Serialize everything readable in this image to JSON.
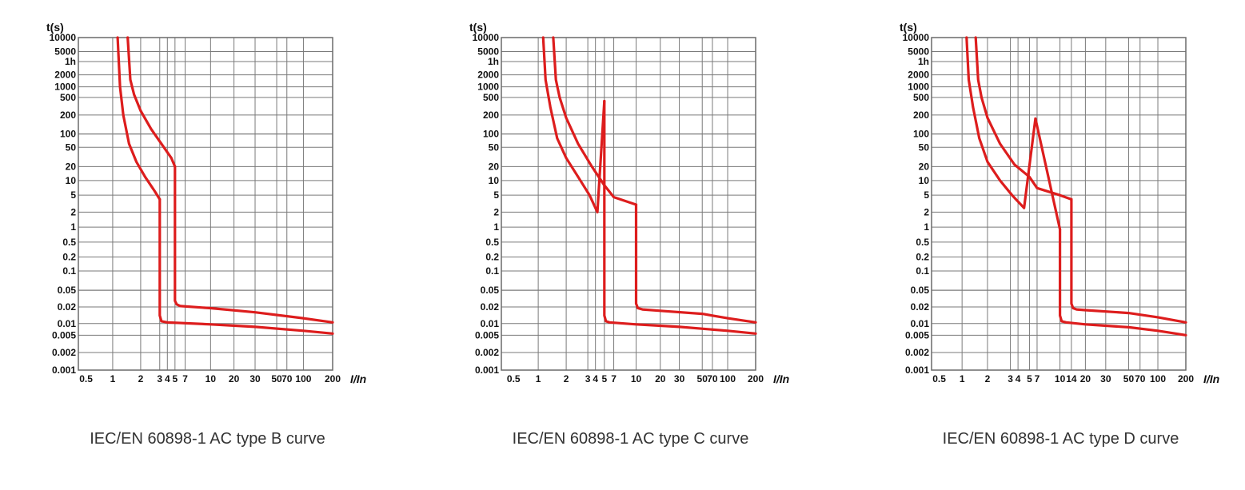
{
  "colors": {
    "curve": "#dd1d1d",
    "grid": "#7a7a7a"
  },
  "chart_data": [
    {
      "type": "line",
      "title": "IEC/EN 60898-1 AC type B curve",
      "xlabel": "I/In",
      "ylabel": "t(s)",
      "xscale": "log",
      "yscale": "log",
      "grid": true,
      "xlim": [
        0.5,
        200
      ],
      "ylim": [
        0.001,
        10000
      ],
      "x_ticks": [
        "0.5",
        "1",
        "2",
        "3",
        "4",
        "5",
        "7",
        "10",
        "20",
        "30",
        "50",
        "70",
        "100",
        "200"
      ],
      "y_ticks": [
        "10000",
        "5000",
        "1h",
        "2000",
        "1000",
        "500",
        "200",
        "100",
        "50",
        "20",
        "10",
        "5",
        "2",
        "1",
        "0.5",
        "0.2",
        "0.1",
        "0.05",
        "0.02",
        "0.01",
        "0.005",
        "0.002",
        "0.001"
      ],
      "series": [
        {
          "x": [
            1.13,
            1.2,
            1.3,
            1.5,
            1.8,
            2.2,
            2.7,
            3
          ],
          "y": [
            10000,
            1000,
            200,
            60,
            25,
            12,
            6,
            4
          ]
        },
        {
          "x": [
            1.45,
            1.55,
            1.7,
            2,
            2.5,
            3.2,
            4.5,
            5
          ],
          "y": [
            10000,
            1500,
            600,
            250,
            120,
            60,
            30,
            20
          ]
        },
        {
          "x": [
            3,
            3,
            3.2,
            4,
            10,
            30,
            100,
            200
          ],
          "y": [
            4,
            0.014,
            0.011,
            0.0105,
            0.0095,
            0.0082,
            0.0065,
            0.0055
          ]
        },
        {
          "x": [
            5,
            5,
            5.3,
            6,
            10,
            30,
            100,
            200
          ],
          "y": [
            20,
            0.028,
            0.023,
            0.021,
            0.019,
            0.016,
            0.0125,
            0.0105
          ]
        }
      ]
    },
    {
      "type": "line",
      "title": "IEC/EN 60898-1 AC type C curve",
      "xlabel": "I/In",
      "ylabel": "t(s)",
      "xscale": "log",
      "yscale": "log",
      "grid": true,
      "xlim": [
        0.5,
        200
      ],
      "ylim": [
        0.001,
        10000
      ],
      "x_ticks": [
        "0.5",
        "1",
        "2",
        "3",
        "4",
        "5",
        "7",
        "10",
        "20",
        "30",
        "50",
        "70",
        "100",
        "200"
      ],
      "y_ticks": [
        "10000",
        "5000",
        "1h",
        "2000",
        "1000",
        "500",
        "200",
        "100",
        "50",
        "20",
        "10",
        "5",
        "2",
        "1",
        "0.5",
        "0.2",
        "0.1",
        "0.05",
        "0.02",
        "0.01",
        "0.005",
        "0.002",
        "0.001"
      ],
      "series": [
        {
          "x": [
            1.13,
            1.2,
            1.35,
            1.6,
            2,
            2.5,
            3.2,
            4.2,
            5
          ],
          "y": [
            10000,
            1500,
            300,
            80,
            30,
            12,
            5,
            2,
            1.2
          ]
        },
        {
          "x": [
            1.45,
            1.55,
            1.7,
            2,
            2.5,
            3.5,
            5,
            7,
            10
          ],
          "y": [
            10000,
            1500,
            500,
            180,
            60,
            20,
            8,
            4.5,
            3
          ]
        },
        {
          "x": [
            5,
            5,
            5.3,
            6,
            10,
            30,
            100,
            200
          ],
          "y": [
            1.2,
            0.014,
            0.011,
            0.0105,
            0.0095,
            0.0082,
            0.0065,
            0.0055
          ]
        },
        {
          "x": [
            10,
            10,
            10.5,
            12,
            20,
            50,
            100,
            200
          ],
          "y": [
            3,
            0.024,
            0.019,
            0.018,
            0.017,
            0.015,
            0.0125,
            0.0105
          ]
        }
      ]
    },
    {
      "type": "line",
      "title": "IEC/EN 60898-1 AC type D curve",
      "xlabel": "I/In",
      "ylabel": "t(s)",
      "xscale": "log",
      "yscale": "log",
      "grid": true,
      "xlim": [
        0.5,
        200
      ],
      "ylim": [
        0.001,
        10000
      ],
      "x_ticks": [
        "0.5",
        "1",
        "2",
        "3",
        "4",
        "5",
        "7",
        "10",
        "14",
        "20",
        "30",
        "50",
        "70",
        "100",
        "200"
      ],
      "y_ticks": [
        "10000",
        "5000",
        "1h",
        "2000",
        "1000",
        "500",
        "200",
        "100",
        "50",
        "20",
        "10",
        "5",
        "2",
        "1",
        "0.5",
        "0.2",
        "0.1",
        "0.05",
        "0.02",
        "0.01",
        "0.005",
        "0.002",
        "0.001"
      ],
      "series": [
        {
          "x": [
            1.13,
            1.2,
            1.35,
            1.6,
            2,
            2.5,
            3.2,
            4.5,
            6.5,
            10
          ],
          "y": [
            10000,
            1500,
            300,
            80,
            25,
            10,
            5,
            2.5,
            1.3,
            0.9
          ]
        },
        {
          "x": [
            1.45,
            1.55,
            1.7,
            2,
            2.5,
            3.5,
            5,
            7,
            10,
            14
          ],
          "y": [
            10000,
            1500,
            500,
            180,
            60,
            22,
            12,
            7,
            5,
            4
          ]
        },
        {
          "x": [
            10,
            10,
            10.5,
            12,
            20,
            50,
            100,
            200
          ],
          "y": [
            0.9,
            0.014,
            0.011,
            0.0105,
            0.0095,
            0.008,
            0.0065,
            0.005
          ]
        },
        {
          "x": [
            14,
            14,
            14.6,
            16,
            20,
            50,
            100,
            200
          ],
          "y": [
            4,
            0.024,
            0.019,
            0.018,
            0.0175,
            0.0155,
            0.013,
            0.0105
          ]
        }
      ]
    }
  ]
}
